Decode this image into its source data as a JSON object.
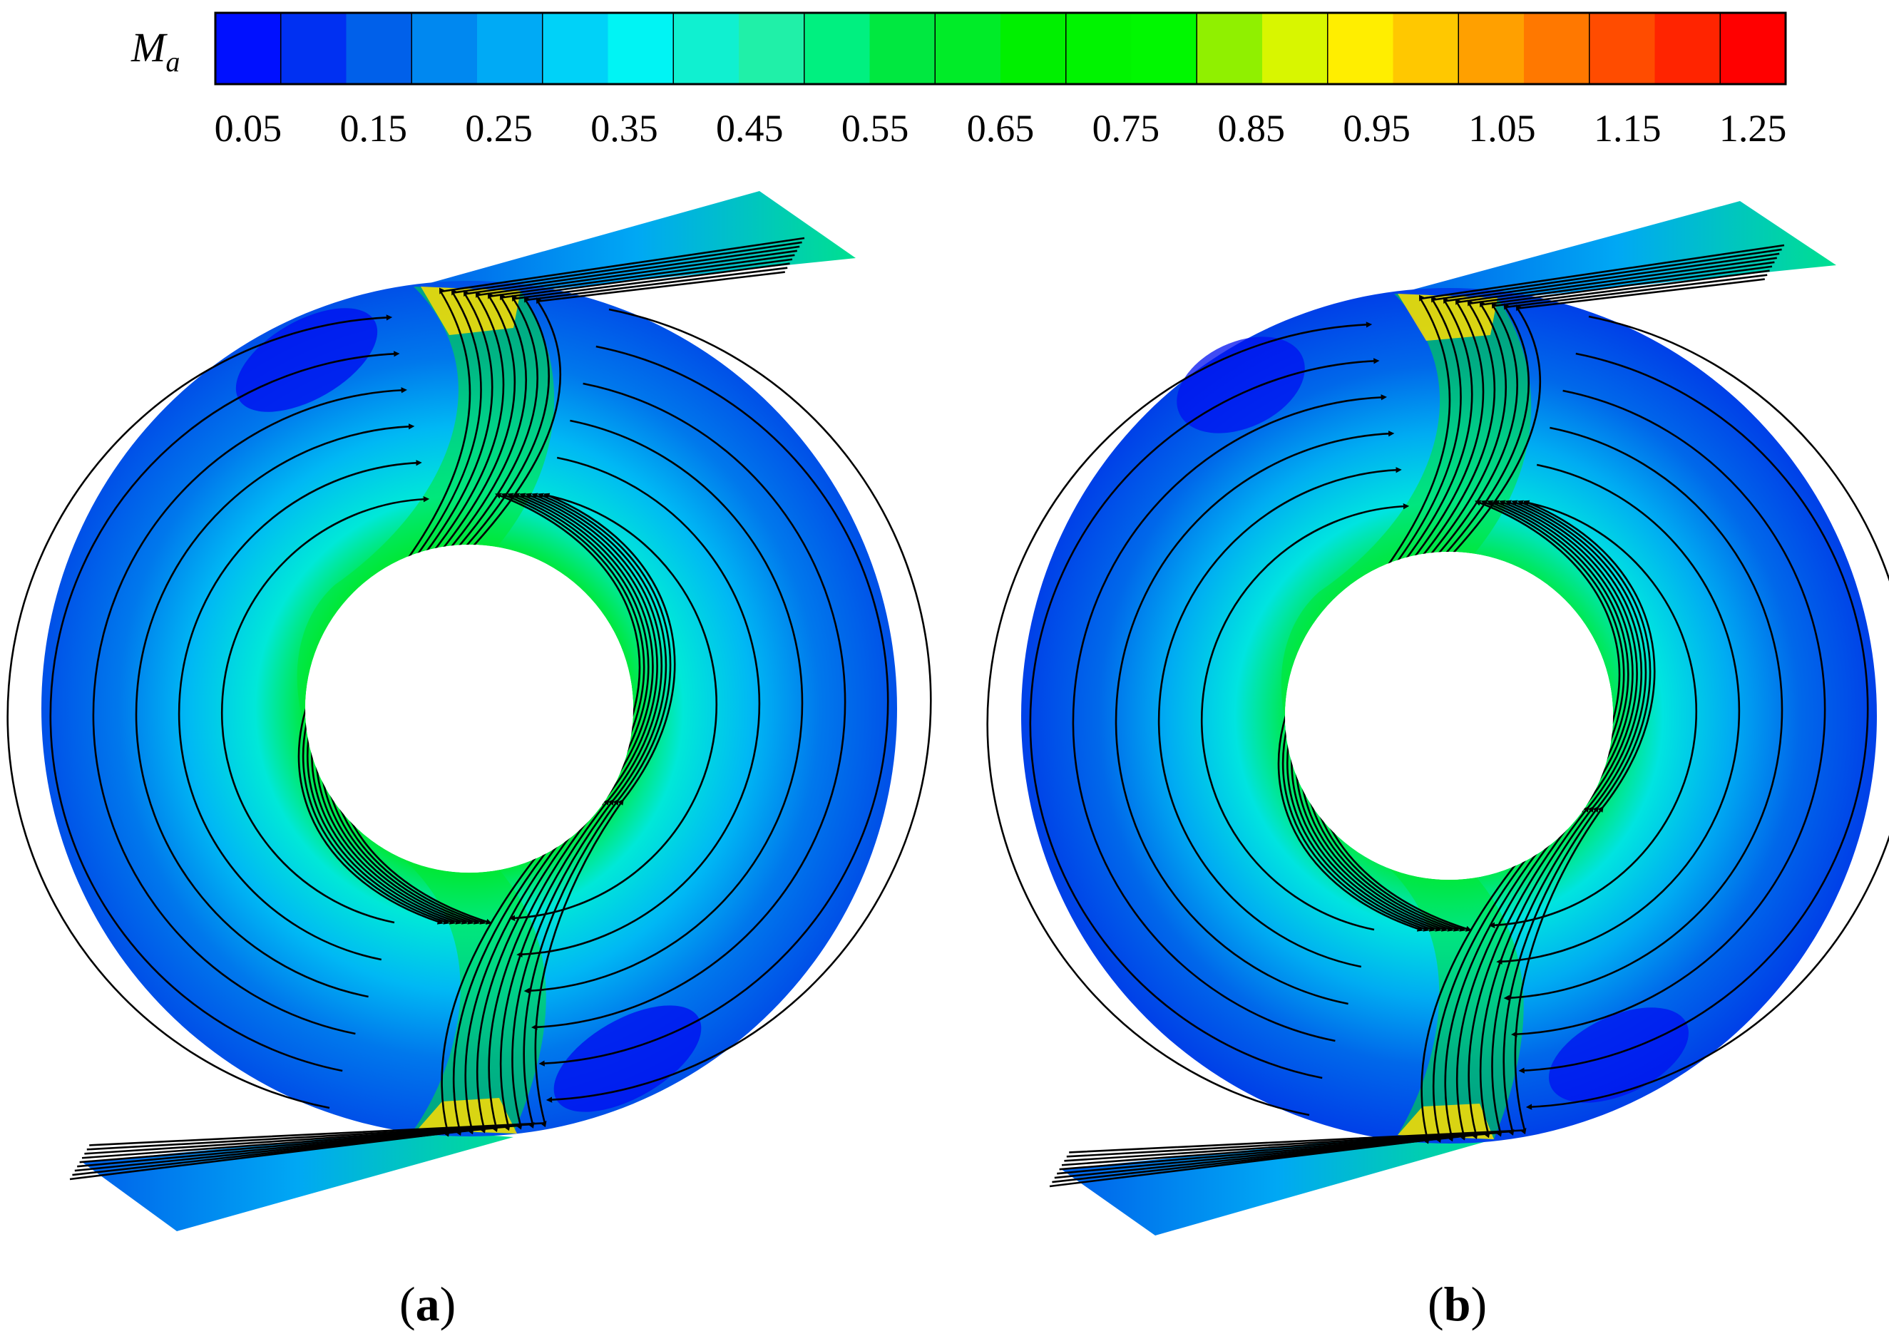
{
  "colorbar": {
    "variable": "M",
    "subscript": "a",
    "tick_labels": [
      "0.05",
      "0.15",
      "0.25",
      "0.35",
      "0.45",
      "0.55",
      "0.65",
      "0.75",
      "0.85",
      "0.95",
      "1.05",
      "1.15",
      "1.25"
    ],
    "colors": [
      "#0010ff",
      "#0030f2",
      "#0060ea",
      "#0088f0",
      "#00aaf5",
      "#00d2f8",
      "#00f4f4",
      "#10f0d0",
      "#20f0a8",
      "#00f080",
      "#00e840",
      "#00ec28",
      "#00f000",
      "#00f400",
      "#00f800",
      "#90f000",
      "#d8f600",
      "#ffee00",
      "#ffc800",
      "#ffa000",
      "#ff7800",
      "#ff4c00",
      "#ff2400",
      "#ff0000"
    ]
  },
  "panels": [
    {
      "id": "a",
      "open": "(",
      "letter": "a",
      "close": ")"
    },
    {
      "id": "b",
      "open": "(",
      "letter": "b",
      "close": ")"
    }
  ]
}
